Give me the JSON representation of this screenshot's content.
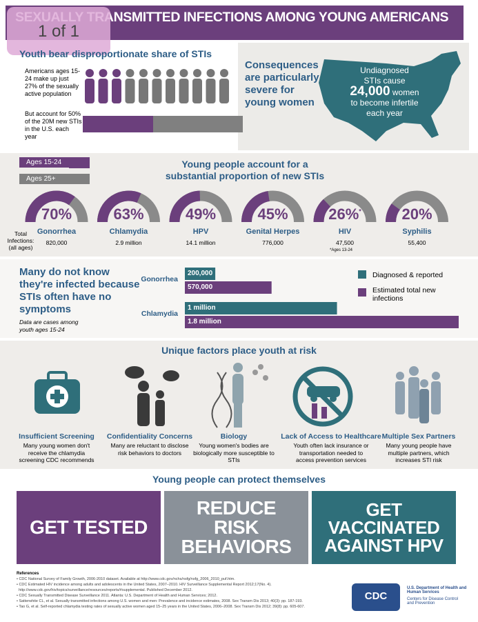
{
  "overlay": "1 of 1",
  "header": {
    "title": "SEXUALLY TRANSMITTED INFECTIONS AMONG YOUNG AMERICANS"
  },
  "share": {
    "title": "Youth bear disproportionate share of STIs",
    "text1": "Americans ages 15-24 make up just 27% of the sexually active population",
    "text2": "But account for 50% of the 20M new STIs in the U.S. each year"
  },
  "consequences": {
    "title": "Consequences are particularly severe for young women",
    "map_text1": "Undiagnosed STIs cause",
    "map_number": "24,000",
    "map_text2": "women",
    "map_text3": "to become infertile",
    "map_text4": "each year"
  },
  "proportion": {
    "legend": [
      "Ages 15-24",
      "Ages 25+"
    ],
    "title": "Young people account for a substantial proportion of new STIs",
    "total_label": "Total Infections: (all ages)",
    "note_marker": "*",
    "note": "*Ages 13-24",
    "items": [
      {
        "percent": {
          "value": 70,
          "label": "70%"
        },
        "name": "Gonorrhea",
        "total": "820,000"
      },
      {
        "percent": {
          "value": 63,
          "label": "63%"
        },
        "name": "Chlamydia",
        "total": "2.9 million"
      },
      {
        "percent": {
          "value": 49,
          "label": "49%"
        },
        "name": "HPV",
        "total": "14.1 million"
      },
      {
        "percent": {
          "value": 45,
          "label": "45%"
        },
        "name": "Genital Herpes",
        "total": "776,000"
      },
      {
        "percent": {
          "value": 26,
          "label": "26%"
        },
        "name": "HIV",
        "total": "47,500"
      },
      {
        "percent": {
          "value": 20,
          "label": "20%"
        },
        "name": "Syphilis",
        "total": "55,400"
      }
    ]
  },
  "unaware": {
    "title": "Many do not know they're infected because STIs often have no symptoms",
    "note": "Data are cases among youth ages 15-24",
    "chart_data": {
      "type": "bar",
      "orientation": "horizontal",
      "categories": [
        "Gonorrhea",
        "Chlamydia"
      ],
      "xlim": [
        0,
        1800000
      ],
      "series": [
        {
          "name": "Diagnosed & reported",
          "color": "#2f6f7a",
          "values": [
            200000,
            1000000
          ],
          "value_labels": [
            "200,000",
            "1 million"
          ]
        },
        {
          "name": "Estimated total new infections",
          "color": "#6b3f7c",
          "values": [
            570000,
            1800000
          ],
          "value_labels": [
            "570,000",
            "1.8 million"
          ]
        }
      ]
    }
  },
  "factors": {
    "title": "Unique factors place youth at risk",
    "items": [
      {
        "title": "Insufficient Screening",
        "text": "Many young women don't receive the chlamydia screening CDC recommends"
      },
      {
        "title": "Confidentiality Concerns",
        "text": "Many are reluctant to disclose risk behaviors to doctors"
      },
      {
        "title": "Biology",
        "text": "Young women's bodies are biologically more susceptible to STIs"
      },
      {
        "title": "Lack of Access to Healthcare",
        "text": "Youth often lack insurance or transportation needed to access prevention services"
      },
      {
        "title": "Multiple Sex Partners",
        "text": "Many young people have multiple partners, which increases STI risk"
      }
    ]
  },
  "protect": {
    "title": "Young people can protect themselves",
    "actions": [
      "GET TESTED",
      "REDUCE RISK BEHAVIORS",
      "GET VACCINATED AGAINST HPV"
    ]
  },
  "references": {
    "title": "References",
    "items": [
      "• CDC National Survey of Family Growth, 2006-2010 dataset. Available at http://www.cdc.gov/nchs/nsfg/nsfg_2006_2010_puf.htm.",
      "• CDC Estimated HIV incidence among adults and adolescents in the United States, 2007–2010. HIV Surveillance Supplemental Report 2012;17(No. 4).",
      "  http://www.cdc.gov/hiv/topics/surveillance/resources/reports/#supplemental. Published December 2012.",
      "• CDC Sexually Transmitted Disease Surveillance 2011. Atlanta: U.S. Department of Health and Human Services; 2012.",
      "• Satterwhite CL, et al. Sexually transmitted infections among U.S. women and men: Prevalence and incidence estimates, 2008. Sex Transm Dis 2013; 40(3): pp. 187-193.",
      "• Tao G, et al. Self-reported chlamydia testing rates of sexually active women aged 15–25 years in the United States, 2006–2008. Sex Transm Dis 2012; 39(8): pp. 605-607."
    ]
  },
  "agency": {
    "logo": "CDC",
    "department": "U.S. Department of Health and Human Services",
    "center": "Centers for Disease Control and Prevention"
  }
}
